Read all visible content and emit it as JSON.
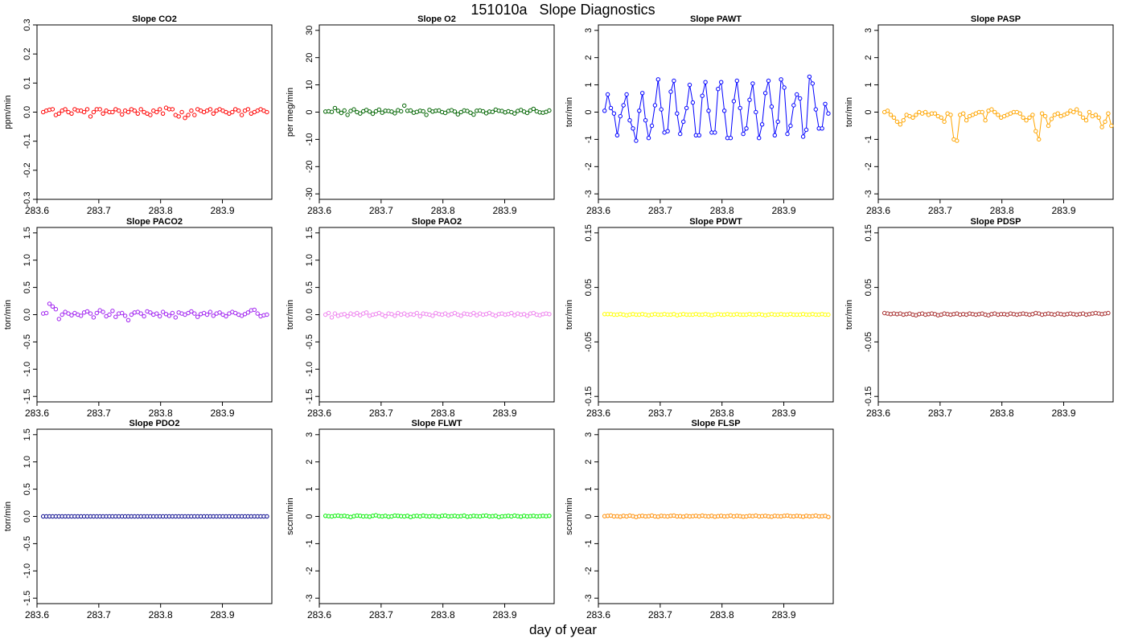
{
  "figure": {
    "title": "151010a   Slope Diagnostics",
    "xlabel": "day of year"
  },
  "chart_data": [
    {
      "type": "scatter",
      "title": "Slope CO2",
      "ylabel": "ppm/min",
      "color": "#ff0000",
      "connected": false,
      "xlim": [
        283.6,
        283.98
      ],
      "ylim": [
        -0.3,
        0.3
      ],
      "xticks": [
        "283.6",
        "283.7",
        "283.8",
        "283.9"
      ],
      "yticks": [
        "-0.3",
        "-0.2",
        "-0.1",
        "0.0",
        "0.1",
        "0.2",
        "0.3"
      ],
      "x_start": 283.61,
      "x_step": 0.0051,
      "values": [
        0.0,
        0.005,
        0.008,
        0.01,
        -0.01,
        -0.005,
        0.005,
        0.01,
        0.0,
        -0.005,
        0.01,
        0.005,
        0.005,
        0.0,
        0.01,
        -0.015,
        0.0,
        0.01,
        0.01,
        -0.005,
        0.005,
        0.0,
        0.0,
        0.01,
        0.005,
        -0.008,
        0.005,
        0.0,
        0.01,
        0.005,
        -0.005,
        0.01,
        0.0,
        -0.005,
        -0.01,
        0.005,
        0.0,
        0.01,
        -0.005,
        0.015,
        0.01,
        0.01,
        -0.01,
        -0.015,
        0.0,
        -0.02,
        -0.01,
        0.005,
        -0.01,
        0.01,
        0.005,
        0.0,
        0.005,
        0.01,
        -0.005,
        0.005,
        0.01,
        0.005,
        0.0,
        -0.005,
        0.0,
        0.01,
        0.005,
        -0.01,
        0.005,
        0.01,
        -0.005,
        0.0,
        0.005,
        0.01,
        0.005,
        0.0
      ]
    },
    {
      "type": "scatter",
      "title": "Slope O2",
      "ylabel": "per meg/min",
      "color": "#006400",
      "connected": false,
      "xlim": [
        283.6,
        283.98
      ],
      "ylim": [
        -32,
        32
      ],
      "xticks": [
        "283.6",
        "283.7",
        "283.8",
        "283.9"
      ],
      "yticks": [
        "-30",
        "-20",
        "-10",
        "0",
        "10",
        "20",
        "30"
      ],
      "x_start": 283.61,
      "x_step": 0.0051,
      "values": [
        0.2,
        0.3,
        0.1,
        1.5,
        0.5,
        -0.3,
        0.6,
        -1.0,
        0.4,
        1.0,
        0.0,
        -0.5,
        0.3,
        0.8,
        0.2,
        -0.6,
        0.3,
        0.9,
        -0.2,
        0.5,
        0.4,
        0.2,
        -0.4,
        0.7,
        0.3,
        2.4,
        0.5,
        0.6,
        -0.2,
        0.1,
        0.5,
        0.3,
        -1.0,
        0.8,
        0.2,
        0.5,
        0.6,
        0.0,
        -0.3,
        0.4,
        0.7,
        0.2,
        -0.8,
        0.0,
        0.6,
        0.4,
        -0.2,
        -0.9,
        0.5,
        0.6,
        0.3,
        -0.4,
        0.2,
        0.1,
        0.9,
        0.5,
        0.4,
        -0.1,
        0.3,
        0.0,
        -0.5,
        0.4,
        0.8,
        0.2,
        -0.3,
        0.6,
        1.2,
        0.3,
        -0.1,
        -0.2,
        0.1,
        0.6
      ]
    },
    {
      "type": "line",
      "title": "Slope PAWT",
      "ylabel": "torr/min",
      "color": "#0000ff",
      "connected": true,
      "xlim": [
        283.6,
        283.98
      ],
      "ylim": [
        -3.2,
        3.2
      ],
      "xticks": [
        "283.6",
        "283.7",
        "283.8",
        "283.9"
      ],
      "yticks": [
        "-3",
        "-2",
        "-1",
        "0",
        "1",
        "2",
        "3"
      ],
      "x_start": 283.61,
      "x_step": 0.0051,
      "values": [
        0.05,
        0.65,
        0.15,
        -0.05,
        -0.85,
        -0.15,
        0.25,
        0.65,
        -0.3,
        -0.6,
        -1.05,
        0.05,
        0.7,
        -0.3,
        -0.95,
        -0.5,
        0.25,
        1.2,
        0.1,
        -0.75,
        -0.7,
        0.75,
        1.15,
        -0.05,
        -0.8,
        -0.35,
        0.15,
        1.0,
        0.35,
        -0.85,
        -0.85,
        0.6,
        1.1,
        0.05,
        -0.75,
        -0.75,
        0.85,
        1.1,
        0.05,
        -0.95,
        -0.95,
        0.4,
        1.15,
        0.15,
        -0.8,
        -0.6,
        0.45,
        1.05,
        0.0,
        -0.95,
        -0.45,
        0.7,
        1.15,
        0.2,
        -0.85,
        -0.35,
        1.2,
        0.9,
        -0.8,
        -0.5,
        0.25,
        0.65,
        0.5,
        -0.9,
        -0.65,
        1.3,
        1.05,
        0.1,
        -0.6,
        -0.6,
        0.3,
        -0.05
      ]
    },
    {
      "type": "line",
      "title": "Slope PASP",
      "ylabel": "torr/min",
      "color": "#ffa500",
      "connected": true,
      "xlim": [
        283.6,
        283.98
      ],
      "ylim": [
        -3.2,
        3.2
      ],
      "xticks": [
        "283.6",
        "283.7",
        "283.8",
        "283.9"
      ],
      "yticks": [
        "-3",
        "-2",
        "-1",
        "0",
        "1",
        "2",
        "3"
      ],
      "x_start": 283.61,
      "x_step": 0.0051,
      "values": [
        0.0,
        0.05,
        -0.1,
        -0.2,
        -0.35,
        -0.45,
        -0.3,
        -0.1,
        -0.15,
        -0.2,
        -0.1,
        0.0,
        -0.05,
        0.0,
        -0.1,
        -0.05,
        -0.05,
        -0.15,
        -0.2,
        -0.35,
        -0.05,
        -0.1,
        -1.0,
        -1.05,
        -0.1,
        -0.05,
        -0.3,
        -0.15,
        -0.1,
        -0.05,
        0.0,
        0.0,
        -0.3,
        0.05,
        0.1,
        0.0,
        -0.1,
        -0.2,
        -0.15,
        -0.1,
        -0.05,
        0.0,
        0.0,
        -0.05,
        -0.2,
        -0.3,
        -0.2,
        -0.1,
        -0.7,
        -1.0,
        -0.05,
        -0.15,
        -0.5,
        -0.25,
        -0.1,
        -0.05,
        -0.15,
        -0.1,
        -0.05,
        0.05,
        0.0,
        0.1,
        -0.05,
        -0.2,
        -0.3,
        0.0,
        -0.15,
        -0.1,
        -0.2,
        -0.55,
        -0.35,
        -0.05,
        -0.5
      ]
    },
    {
      "type": "scatter",
      "title": "Slope PACO2",
      "ylabel": "torr/min",
      "color": "#a020f0",
      "connected": false,
      "xlim": [
        283.6,
        283.98
      ],
      "ylim": [
        -1.6,
        1.6
      ],
      "xticks": [
        "283.6",
        "283.7",
        "283.8",
        "283.9"
      ],
      "yticks": [
        "-1.5",
        "-1.0",
        "-0.5",
        "0.0",
        "0.5",
        "1.0",
        "1.5"
      ],
      "x_start": 283.61,
      "x_step": 0.0051,
      "values": [
        0.02,
        0.03,
        0.2,
        0.15,
        0.1,
        -0.08,
        0.0,
        0.05,
        0.02,
        -0.01,
        0.03,
        0.0,
        -0.02,
        0.04,
        0.06,
        0.02,
        -0.05,
        0.03,
        0.08,
        0.05,
        -0.03,
        0.0,
        0.07,
        -0.04,
        0.02,
        0.03,
        -0.02,
        -0.1,
        0.0,
        0.04,
        0.05,
        0.02,
        -0.03,
        0.06,
        0.04,
        0.0,
        0.02,
        -0.03,
        0.05,
        0.01,
        -0.02,
        0.03,
        -0.05,
        0.04,
        0.02,
        0.0,
        0.03,
        0.06,
        0.02,
        -0.04,
        0.01,
        0.03,
        0.0,
        0.05,
        -0.02,
        0.02,
        0.04,
        0.0,
        -0.03,
        0.02,
        0.05,
        0.03,
        0.0,
        -0.02,
        0.01,
        0.04,
        0.08,
        0.09,
        0.02,
        -0.03,
        -0.01,
        0.0
      ]
    },
    {
      "type": "scatter",
      "title": "Slope PAO2",
      "ylabel": "torr/min",
      "color": "#ee82ee",
      "connected": false,
      "xlim": [
        283.6,
        283.98
      ],
      "ylim": [
        -1.6,
        1.6
      ],
      "xticks": [
        "283.6",
        "283.7",
        "283.8",
        "283.9"
      ],
      "yticks": [
        "-1.5",
        "-1.0",
        "-0.5",
        "0.0",
        "0.5",
        "1.0",
        "1.5"
      ],
      "x_start": 283.61,
      "x_step": 0.0051,
      "values": [
        0.0,
        0.03,
        -0.05,
        0.02,
        -0.02,
        0.0,
        0.01,
        -0.03,
        0.02,
        0.0,
        0.03,
        -0.01,
        0.02,
        0.04,
        -0.02,
        0.0,
        0.01,
        0.03,
        0.0,
        -0.03,
        0.02,
        0.01,
        -0.02,
        0.03,
        0.0,
        0.02,
        -0.01,
        0.01,
        0.0,
        0.03,
        -0.03,
        0.02,
        0.01,
        0.0,
        -0.02,
        0.03,
        0.01,
        0.0,
        0.02,
        -0.01,
        0.01,
        0.03,
        0.0,
        -0.02,
        0.02,
        0.01,
        0.0,
        0.03,
        -0.01,
        0.02,
        0.0,
        0.01,
        0.03,
        0.0,
        -0.02,
        0.01,
        0.02,
        0.0,
        0.01,
        0.03,
        -0.01,
        0.02,
        0.0,
        0.01,
        -0.02,
        0.02,
        0.03,
        0.0,
        -0.01,
        0.01,
        0.02,
        0.01
      ]
    },
    {
      "type": "scatter",
      "title": "Slope PDWT",
      "ylabel": "torr/min",
      "color": "#ffff00",
      "connected": false,
      "xlim": [
        283.6,
        283.98
      ],
      "ylim": [
        -0.16,
        0.16
      ],
      "xticks": [
        "283.6",
        "283.7",
        "283.8",
        "283.9"
      ],
      "yticks": [
        "-0.15",
        "-0.05",
        "0.05",
        "0.15"
      ],
      "x_start": 283.61,
      "x_step": 0.0051,
      "values": [
        0.001,
        0.001,
        0.001,
        0.0,
        0.0,
        0.001,
        0.0,
        -0.001,
        0.0,
        0.001,
        0.0,
        0.0,
        0.001,
        0.0,
        -0.001,
        0.0,
        0.001,
        0.0,
        0.0,
        0.001,
        0.0,
        0.0,
        0.001,
        -0.001,
        0.0,
        0.001,
        0.0,
        0.0,
        0.0,
        0.001,
        0.0,
        0.0,
        0.001,
        0.0,
        -0.001,
        0.0,
        0.001,
        0.0,
        0.0,
        0.001,
        0.0,
        0.0,
        0.001,
        0.0,
        0.0,
        0.0,
        0.001,
        0.0,
        0.0,
        0.001,
        0.0,
        -0.001,
        0.0,
        0.001,
        0.0,
        0.0,
        0.001,
        0.0,
        0.0,
        0.001,
        0.0,
        0.0,
        0.0,
        0.001,
        0.0,
        0.0,
        0.001,
        0.0,
        0.0,
        0.001,
        0.0,
        0.0
      ]
    },
    {
      "type": "line",
      "title": "Slope PDSP",
      "ylabel": "torr/min",
      "color": "#a52a2a",
      "connected": true,
      "xlim": [
        283.6,
        283.98
      ],
      "ylim": [
        -0.16,
        0.16
      ],
      "xticks": [
        "283.6",
        "283.7",
        "283.8",
        "283.9"
      ],
      "yticks": [
        "-0.15",
        "-0.05",
        "0.05",
        "0.15"
      ],
      "x_start": 283.61,
      "x_step": 0.0051,
      "values": [
        0.003,
        0.002,
        0.001,
        0.002,
        0.001,
        0.002,
        0.0,
        0.001,
        0.002,
        0.0,
        -0.001,
        0.001,
        0.002,
        0.0,
        0.001,
        0.002,
        0.001,
        -0.001,
        0.0,
        0.002,
        0.001,
        0.0,
        0.001,
        0.002,
        0.0,
        0.001,
        0.0,
        0.002,
        0.001,
        0.0,
        0.001,
        0.002,
        0.0,
        -0.001,
        0.001,
        0.002,
        0.0,
        0.001,
        0.001,
        0.0,
        0.002,
        0.001,
        0.0,
        0.001,
        0.002,
        0.001,
        0.0,
        0.001,
        0.003,
        0.002,
        0.0,
        0.001,
        0.002,
        0.001,
        0.0,
        0.002,
        0.001,
        0.0,
        0.001,
        0.002,
        0.001,
        0.0,
        0.001,
        0.002,
        0.0,
        0.001,
        0.002,
        0.003,
        0.002,
        0.001,
        0.002,
        0.003
      ]
    },
    {
      "type": "scatter",
      "title": "Slope PDO2",
      "ylabel": "torr/min",
      "color": "#00008b",
      "connected": false,
      "xlim": [
        283.6,
        283.98
      ],
      "ylim": [
        -1.6,
        1.6
      ],
      "xticks": [
        "283.6",
        "283.7",
        "283.8",
        "283.9"
      ],
      "yticks": [
        "-1.5",
        "-1.0",
        "-0.5",
        "0.0",
        "0.5",
        "1.0",
        "1.5"
      ],
      "x_start": 283.61,
      "x_step": 0.0051,
      "values": [
        0.0,
        0.0,
        0.0,
        0.0,
        0.0,
        0.0,
        0.0,
        0.0,
        0.0,
        0.0,
        0.0,
        0.0,
        0.0,
        0.0,
        0.0,
        0.0,
        0.0,
        0.0,
        0.0,
        0.0,
        0.0,
        0.0,
        0.0,
        0.0,
        0.0,
        0.0,
        0.0,
        0.0,
        0.0,
        0.0,
        0.0,
        0.0,
        0.0,
        0.0,
        0.0,
        0.0,
        0.0,
        0.0,
        0.0,
        0.0,
        0.0,
        0.0,
        0.0,
        0.0,
        0.0,
        0.0,
        0.0,
        0.0,
        0.0,
        0.0,
        0.0,
        0.0,
        0.0,
        0.0,
        0.0,
        0.0,
        0.0,
        0.0,
        0.0,
        0.0,
        0.0,
        0.0,
        0.0,
        0.0,
        0.0,
        0.0,
        0.0,
        0.0,
        0.0,
        0.0,
        0.0,
        0.0
      ]
    },
    {
      "type": "scatter",
      "title": "Slope FLWT",
      "ylabel": "sccm/min",
      "color": "#00ee00",
      "connected": false,
      "xlim": [
        283.6,
        283.98
      ],
      "ylim": [
        -3.2,
        3.2
      ],
      "xticks": [
        "283.6",
        "283.7",
        "283.8",
        "283.9"
      ],
      "yticks": [
        "-3",
        "-2",
        "-1",
        "0",
        "1",
        "2",
        "3"
      ],
      "x_start": 283.61,
      "x_step": 0.0051,
      "values": [
        0.02,
        0.01,
        0.0,
        0.02,
        0.03,
        0.01,
        0.02,
        0.0,
        -0.02,
        0.01,
        0.03,
        0.02,
        0.0,
        0.01,
        -0.01,
        0.02,
        0.04,
        0.01,
        0.0,
        0.02,
        -0.01,
        0.0,
        0.03,
        0.02,
        0.01,
        0.0,
        0.02,
        -0.02,
        0.01,
        0.02,
        0.0,
        0.03,
        0.01,
        0.0,
        0.02,
        0.01,
        -0.01,
        0.02,
        0.03,
        0.0,
        0.01,
        0.02,
        0.0,
        0.01,
        0.03,
        -0.01,
        0.0,
        0.02,
        0.01,
        0.0,
        0.02,
        0.03,
        0.0,
        0.01,
        0.02,
        -0.02,
        0.0,
        0.01,
        0.02,
        0.0,
        0.03,
        0.01,
        -0.01,
        0.02,
        0.0,
        0.01,
        0.02,
        0.0,
        0.01,
        0.02,
        0.01,
        0.02
      ]
    },
    {
      "type": "scatter",
      "title": "Slope FLSP",
      "ylabel": "sccm/min",
      "color": "#ff8c00",
      "connected": false,
      "xlim": [
        283.6,
        283.98
      ],
      "ylim": [
        -3.2,
        3.2
      ],
      "xticks": [
        "283.6",
        "283.7",
        "283.8",
        "283.9"
      ],
      "yticks": [
        "-3",
        "-2",
        "-1",
        "0",
        "1",
        "2",
        "3"
      ],
      "x_start": 283.61,
      "x_step": 0.0051,
      "values": [
        0.01,
        0.02,
        0.03,
        0.0,
        0.01,
        -0.01,
        0.02,
        0.0,
        0.03,
        0.01,
        -0.02,
        0.01,
        0.02,
        0.0,
        0.01,
        0.03,
        0.0,
        -0.01,
        0.02,
        0.01,
        0.0,
        0.02,
        0.03,
        0.0,
        0.01,
        -0.01,
        0.02,
        0.0,
        0.01,
        0.02,
        0.0,
        0.03,
        0.01,
        0.0,
        0.02,
        -0.01,
        0.01,
        0.02,
        0.0,
        0.01,
        0.03,
        0.0,
        0.02,
        0.01,
        -0.01,
        0.0,
        0.02,
        0.01,
        0.03,
        0.0,
        0.01,
        0.02,
        0.0,
        -0.01,
        0.02,
        0.01,
        0.0,
        0.02,
        0.03,
        0.01,
        0.0,
        0.02,
        0.01,
        -0.01,
        0.02,
        0.0,
        0.01,
        0.03,
        0.0,
        0.01,
        0.02,
        -0.02
      ]
    }
  ]
}
